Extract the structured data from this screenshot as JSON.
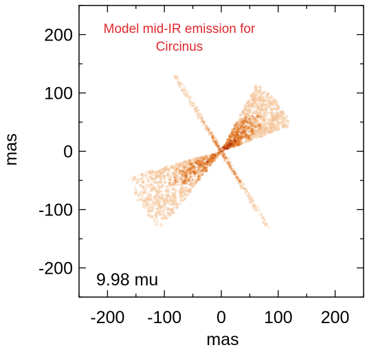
{
  "chart_data": {
    "type": "heatmap",
    "title_lines": [
      "Model mid-IR emission for",
      "Circinus"
    ],
    "title_color": "#e0262b",
    "annotation": "9.98 mu",
    "xlabel": "mas",
    "ylabel": "mas",
    "xlim": [
      -250,
      250
    ],
    "ylim": [
      -250,
      250
    ],
    "xticks": [
      -200,
      -100,
      0,
      100,
      200
    ],
    "yticks": [
      -200,
      -100,
      0,
      100,
      200
    ],
    "xtick_labels": [
      "-200",
      "-100",
      "0",
      "100",
      "200"
    ],
    "ytick_labels": [
      "-200",
      "-100",
      "0",
      "100",
      "200"
    ],
    "grid": false,
    "colormap": [
      "#ffffff",
      "#f4c59a",
      "#e07a2c",
      "#b8380f",
      "#7a1606"
    ],
    "features": [
      {
        "kind": "cone",
        "apex": [
          0,
          0
        ],
        "angle_min_deg": 20,
        "angle_max_deg": 62,
        "r_max": 130,
        "peak": 1.0
      },
      {
        "kind": "cone",
        "apex": [
          0,
          0
        ],
        "angle_min_deg": 195,
        "angle_max_deg": 232,
        "r_max": 170,
        "peak": 0.85
      },
      {
        "kind": "disk",
        "center": [
          0,
          0
        ],
        "angle_deg": 122,
        "half_length": 155,
        "peak": 0.8
      }
    ]
  }
}
